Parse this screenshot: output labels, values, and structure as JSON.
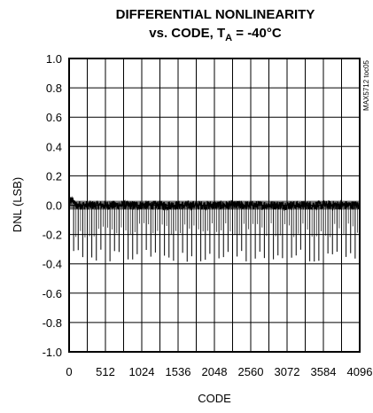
{
  "chart_data": {
    "type": "line",
    "title_line1": "DIFFERENTIAL NONLINEARITY",
    "title_line2_main": "vs. CODE, T",
    "title_line2_sub": "A",
    "title_line2_rest": " = -40°C",
    "xlabel": "CODE",
    "ylabel": "DNL (LSB)",
    "figure_code": "MAX5712 toc05",
    "xlim": [
      0,
      4096
    ],
    "ylim": [
      -1.0,
      1.0
    ],
    "x_ticks": [
      0,
      512,
      1024,
      1536,
      2048,
      2560,
      3072,
      3584,
      4096
    ],
    "x_tick_labels": [
      "0",
      "512",
      "1024",
      "1536",
      "2048",
      "2560",
      "3072",
      "3584",
      "4096"
    ],
    "y_ticks": [
      1.0,
      0.8,
      0.6,
      0.4,
      0.2,
      0.0,
      -0.2,
      -0.4,
      -0.6,
      -0.8,
      -1.0
    ],
    "y_tick_labels": [
      "1.0",
      "0.8",
      "0.6",
      "0.4",
      "0.2",
      "0.0",
      "-0.2",
      "-0.4",
      "-0.6",
      "-0.8",
      "-1.0"
    ],
    "grid": true,
    "series": [
      {
        "baseline_band": [
          -0.03,
          0.03
        ],
        "start_spike_max": 0.06,
        "spike_period_codes": 64,
        "spike_min": [
          -0.39,
          -0.3
        ],
        "intermediate_spike_min": [
          -0.22,
          -0.12
        ],
        "color": "#000000"
      }
    ]
  }
}
